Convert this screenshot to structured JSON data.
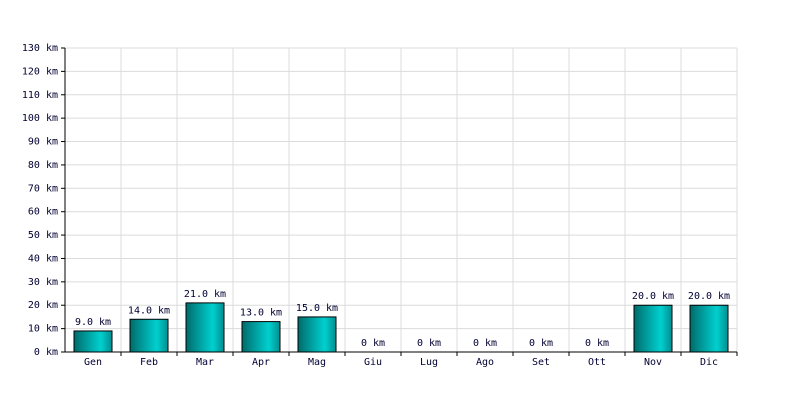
{
  "chart_data": {
    "type": "bar",
    "categories": [
      "Gen",
      "Feb",
      "Mar",
      "Apr",
      "Mag",
      "Giu",
      "Lug",
      "Ago",
      "Set",
      "Ott",
      "Nov",
      "Dic"
    ],
    "values": [
      9,
      14,
      21,
      13,
      15,
      0,
      0,
      0,
      0,
      0,
      20,
      20
    ],
    "value_labels": [
      "9.0 km",
      "14.0 km",
      "21.0 km",
      "13.0 km",
      "15.0 km",
      "0 km",
      "0 km",
      "0 km",
      "0 km",
      "0 km",
      "20.0 km",
      "20.0 km"
    ],
    "color": "#00d0d0",
    "ylim": [
      0,
      130
    ],
    "yticks": [
      {
        "value": 0,
        "label": "0 km"
      },
      {
        "value": 10,
        "label": "10 km"
      },
      {
        "value": 20,
        "label": "20 km"
      },
      {
        "value": 30,
        "label": "30 km"
      },
      {
        "value": 40,
        "label": "40 km"
      },
      {
        "value": 50,
        "label": "50 km"
      },
      {
        "value": 60,
        "label": "60 km"
      },
      {
        "value": 70,
        "label": "70 km"
      },
      {
        "value": 80,
        "label": "80 km"
      },
      {
        "value": 90,
        "label": "90 km"
      },
      {
        "value": 100,
        "label": "100 km"
      },
      {
        "value": 110,
        "label": "110 km"
      },
      {
        "value": 120,
        "label": "120 km"
      },
      {
        "value": 130,
        "label": "130 km"
      }
    ],
    "grid": true
  }
}
